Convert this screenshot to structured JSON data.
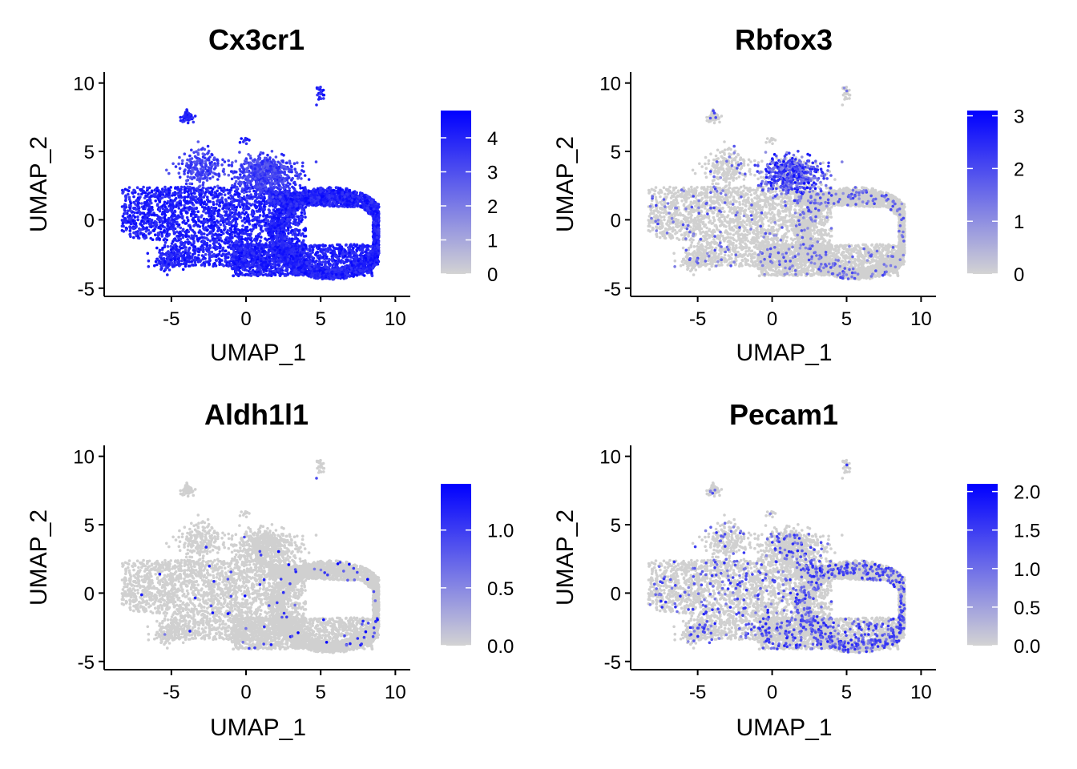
{
  "chart_data": [
    {
      "type": "scatter",
      "title": "Cx3cr1",
      "xlabel": "UMAP_1",
      "ylabel": "UMAP_2",
      "xlim": [
        -9.5,
        11
      ],
      "ylim": [
        -5.6,
        10.8
      ],
      "xticks": [
        "-5",
        "0",
        "5",
        "10"
      ],
      "yticks": [
        "-5",
        "0",
        "5",
        "10"
      ],
      "xtick_values": [
        -5,
        0,
        5,
        10
      ],
      "ytick_values": [
        -5,
        0,
        5,
        10
      ],
      "colorbar": {
        "low_color": "#d3d3d3",
        "high_color": "#0000ff",
        "min": 0,
        "max": 4.8,
        "ticks": [
          "0",
          "1",
          "2",
          "3",
          "4"
        ],
        "tick_values": [
          0,
          1,
          2,
          3,
          4
        ]
      },
      "expression_profile": "high_everywhere"
    },
    {
      "type": "scatter",
      "title": "Rbfox3",
      "xlabel": "UMAP_1",
      "ylabel": "UMAP_2",
      "xlim": [
        -9.5,
        11
      ],
      "ylim": [
        -5.6,
        10.8
      ],
      "xticks": [
        "-5",
        "0",
        "5",
        "10"
      ],
      "yticks": [
        "-5",
        "0",
        "5",
        "10"
      ],
      "xtick_values": [
        -5,
        0,
        5,
        10
      ],
      "ytick_values": [
        -5,
        0,
        5,
        10
      ],
      "colorbar": {
        "low_color": "#d3d3d3",
        "high_color": "#0000ff",
        "min": 0,
        "max": 3.1,
        "ticks": [
          "0",
          "1",
          "2",
          "3"
        ],
        "tick_values": [
          0,
          1,
          2,
          3
        ]
      },
      "expression_profile": "upper_cluster_and_right_lobe"
    },
    {
      "type": "scatter",
      "title": "Aldh1l1",
      "xlabel": "UMAP_1",
      "ylabel": "UMAP_2",
      "xlim": [
        -9.5,
        11
      ],
      "ylim": [
        -5.6,
        10.8
      ],
      "xticks": [
        "-5",
        "0",
        "5",
        "10"
      ],
      "yticks": [
        "-5",
        "0",
        "5",
        "10"
      ],
      "xtick_values": [
        -5,
        0,
        5,
        10
      ],
      "ytick_values": [
        -5,
        0,
        5,
        10
      ],
      "colorbar": {
        "low_color": "#d3d3d3",
        "high_color": "#0000ff",
        "min": 0,
        "max": 1.4,
        "ticks": [
          "0.0",
          "0.5",
          "1.0"
        ],
        "tick_values": [
          0,
          0.5,
          1.0
        ]
      },
      "expression_profile": "sparse"
    },
    {
      "type": "scatter",
      "title": "Pecam1",
      "xlabel": "UMAP_1",
      "ylabel": "UMAP_2",
      "xlim": [
        -9.5,
        11
      ],
      "ylim": [
        -5.6,
        10.8
      ],
      "xticks": [
        "-5",
        "0",
        "5",
        "10"
      ],
      "yticks": [
        "-5",
        "0",
        "5",
        "10"
      ],
      "xtick_values": [
        -5,
        0,
        5,
        10
      ],
      "ytick_values": [
        -5,
        0,
        5,
        10
      ],
      "colorbar": {
        "low_color": "#d3d3d3",
        "high_color": "#0000ff",
        "min": 0,
        "max": 2.1,
        "ticks": [
          "0.0",
          "0.5",
          "1.0",
          "1.5",
          "2.0"
        ],
        "tick_values": [
          0,
          0.5,
          1.0,
          1.5,
          2.0
        ]
      },
      "expression_profile": "moderate_scattered"
    }
  ]
}
